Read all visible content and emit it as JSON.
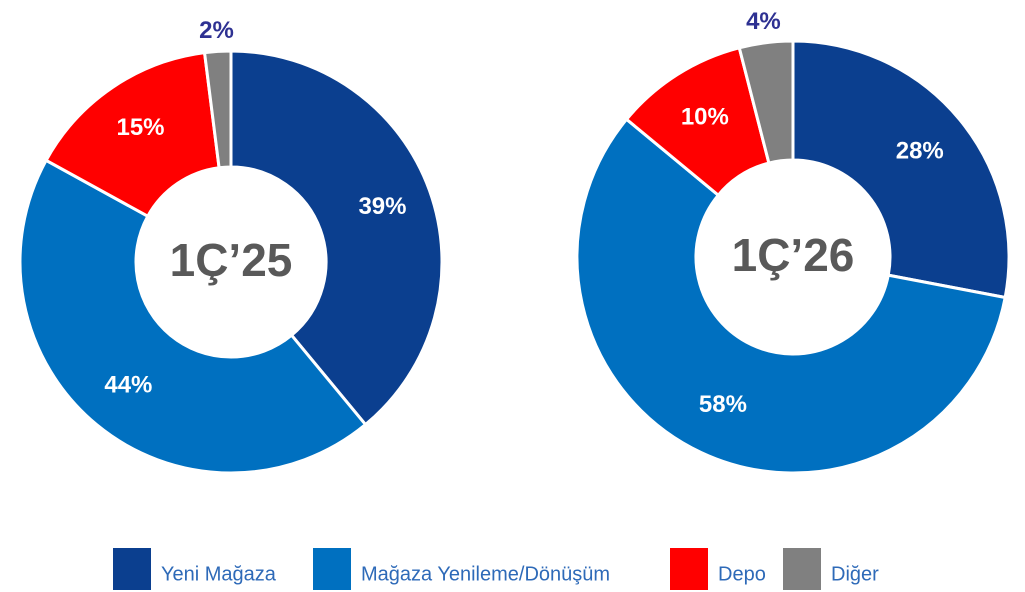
{
  "chart_data": [
    {
      "type": "donut",
      "center_label": "1Ç’25",
      "categories": [
        "Yeni Mağaza",
        "Mağaza Yenileme/Dönüşüm",
        "Depo",
        "Diğer"
      ],
      "values": [
        39,
        44,
        15,
        2
      ],
      "value_labels": [
        "39%",
        "44%",
        "15%",
        "2%"
      ],
      "colors": [
        "#0b3f8f",
        "#0070c0",
        "#ff0000",
        "#808080"
      ]
    },
    {
      "type": "donut",
      "center_label": "1Ç’26",
      "categories": [
        "Yeni Mağaza",
        "Mağaza Yenileme/Dönüşüm",
        "Depo",
        "Diğer"
      ],
      "values": [
        28,
        58,
        10,
        4
      ],
      "value_labels": [
        "28%",
        "58%",
        "10%",
        "4%"
      ],
      "colors": [
        "#0b3f8f",
        "#0070c0",
        "#ff0000",
        "#808080"
      ]
    }
  ]
}
